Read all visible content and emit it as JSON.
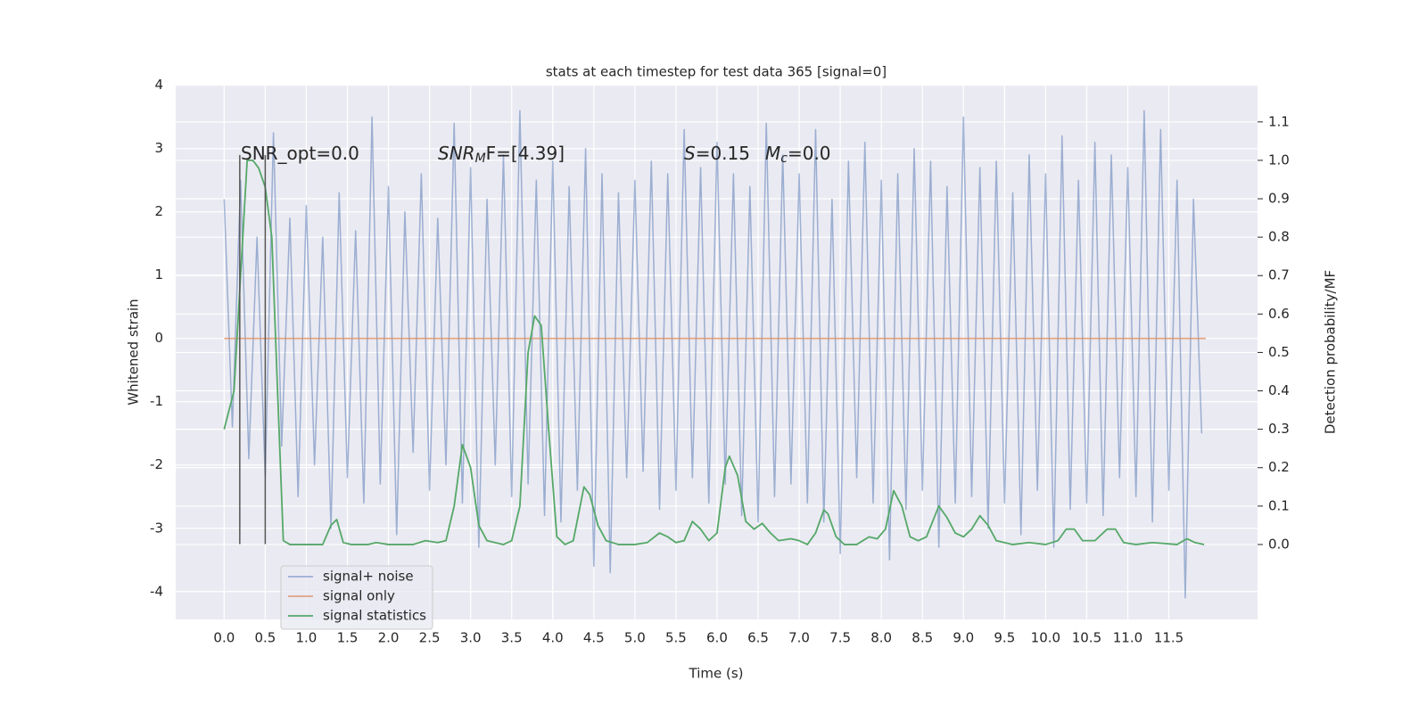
{
  "chart_data": {
    "type": "line",
    "title": "stats at each timestep for test data 365 [signal=0]",
    "xlabel": "Time (s)",
    "ylabel": "Whitened strain",
    "y2label": "Detection probability/MF",
    "xlim": [
      -0.59,
      12.58
    ],
    "ylim": [
      -4.44,
      4.01
    ],
    "y2lim": [
      -0.195,
      1.197
    ],
    "xticks": [
      {
        "value": 0,
        "label": "0.0"
      },
      0.5,
      {
        "value": 1,
        "label": "1.0"
      },
      1.5,
      {
        "value": 2,
        "label": "2.0"
      },
      2.5,
      {
        "value": 3,
        "label": "3.0"
      },
      3.5,
      {
        "value": 4,
        "label": "4.0"
      },
      4.5,
      {
        "value": 5,
        "label": "5.0"
      },
      5.5,
      {
        "value": 6,
        "label": "6.0"
      },
      6.5,
      {
        "value": 7,
        "label": "7.0"
      },
      7.5,
      {
        "value": 8,
        "label": "8.0"
      },
      8.5,
      {
        "value": 9,
        "label": "9.0"
      },
      9.5,
      {
        "value": 10,
        "label": "10.0"
      },
      10.5,
      {
        "value": 11,
        "label": "11.0"
      },
      11.5
    ],
    "yticks": [
      -4,
      -3,
      -2,
      -1,
      0,
      1,
      2,
      3,
      4
    ],
    "y2ticks": [
      {
        "value": 0,
        "label": "0.0"
      },
      0.1,
      0.2,
      0.3,
      0.4,
      0.5,
      0.6,
      0.7,
      0.8,
      0.9,
      {
        "value": 1,
        "label": "1.0"
      },
      1.1
    ],
    "grid": true,
    "legend": "lower left",
    "series": [
      {
        "name": "signal+ noise",
        "color": "#4c72b0",
        "x": [
          0,
          0.1,
          0.2,
          0.3,
          0.4,
          0.5,
          0.6,
          0.7,
          0.8,
          0.9,
          1,
          1.1,
          1.2,
          1.3,
          1.4,
          1.5,
          1.6,
          1.7,
          1.8,
          1.9,
          2,
          2.1,
          2.2,
          2.3,
          2.4,
          2.5,
          2.6,
          2.7,
          2.8,
          2.9,
          3,
          3.1,
          3.2,
          3.3,
          3.4,
          3.5,
          3.6,
          3.7,
          3.8,
          3.9,
          4,
          4.1,
          4.2,
          4.3,
          4.4,
          4.5,
          4.6,
          4.7,
          4.8,
          4.9,
          5,
          5.1,
          5.2,
          5.3,
          5.4,
          5.5,
          5.6,
          5.7,
          5.8,
          5.9,
          6,
          6.1,
          6.2,
          6.3,
          6.4,
          6.5,
          6.6,
          6.7,
          6.8,
          6.9,
          7,
          7.1,
          7.2,
          7.3,
          7.4,
          7.5,
          7.6,
          7.7,
          7.8,
          7.9,
          8,
          8.1,
          8.2,
          8.3,
          8.4,
          8.5,
          8.6,
          8.7,
          8.8,
          8.9,
          9,
          9.1,
          9.2,
          9.3,
          9.4,
          9.5,
          9.6,
          9.7,
          9.8,
          9.9,
          10,
          10.1,
          10.2,
          10.3,
          10.4,
          10.5,
          10.6,
          10.7,
          10.8,
          10.9,
          11,
          11.1,
          11.2,
          11.3,
          11.4,
          11.5,
          11.6,
          11.7,
          11.8,
          11.9
        ],
        "values": [
          2.2,
          -1.4,
          2.5,
          -1.9,
          1.6,
          -2.2,
          3.25,
          -1.7,
          1.9,
          -2.5,
          2.1,
          -2.0,
          1.6,
          -3.0,
          2.3,
          -2.2,
          1.7,
          -2.6,
          3.5,
          -2.3,
          2.4,
          -3.1,
          2.0,
          -1.8,
          2.6,
          -2.4,
          1.9,
          -2.0,
          3.4,
          -2.6,
          2.7,
          -3.3,
          2.2,
          -2.0,
          2.9,
          -2.5,
          3.6,
          -2.3,
          2.5,
          -2.8,
          2.8,
          -2.9,
          2.4,
          -2.4,
          3.0,
          -3.6,
          2.6,
          -3.7,
          2.3,
          -2.2,
          2.5,
          -2.1,
          2.8,
          -2.7,
          2.6,
          -2.4,
          3.3,
          -2.2,
          2.7,
          -2.6,
          3.1,
          -2.3,
          2.6,
          -2.8,
          2.4,
          -2.9,
          3.4,
          -2.5,
          2.9,
          -2.3,
          2.6,
          -2.6,
          3.3,
          -2.9,
          2.2,
          -3.4,
          2.8,
          -2.2,
          3.1,
          -2.6,
          2.5,
          -3.5,
          2.6,
          -2.7,
          3.0,
          -2.4,
          2.8,
          -3.3,
          2.4,
          -2.6,
          3.5,
          -2.5,
          2.7,
          -3.0,
          2.8,
          -2.6,
          2.3,
          -3.1,
          2.9,
          -2.4,
          2.6,
          -3.3,
          3.2,
          -2.7,
          2.5,
          -2.6,
          3.1,
          -2.8,
          2.9,
          -2.2,
          2.7,
          -2.5,
          3.6,
          -2.9,
          3.3,
          -2.4,
          2.5,
          -4.1,
          2.2,
          -1.5
        ]
      },
      {
        "name": "signal only",
        "color": "#dd8452",
        "x": [
          0,
          11.95
        ],
        "values": [
          0,
          0
        ]
      },
      {
        "name": "signal statistics",
        "color": "#55a868",
        "axis": "y2",
        "x": [
          0,
          0.12,
          0.2,
          0.28,
          0.35,
          0.42,
          0.5,
          0.58,
          0.65,
          0.72,
          0.8,
          1.0,
          1.2,
          1.3,
          1.37,
          1.45,
          1.55,
          1.75,
          1.85,
          2.0,
          2.3,
          2.45,
          2.6,
          2.7,
          2.8,
          2.9,
          3.0,
          3.1,
          3.2,
          3.4,
          3.5,
          3.6,
          3.7,
          3.78,
          3.86,
          3.95,
          4.05,
          4.15,
          4.25,
          4.38,
          4.45,
          4.55,
          4.65,
          4.8,
          5.0,
          5.15,
          5.3,
          5.4,
          5.5,
          5.6,
          5.7,
          5.8,
          5.9,
          6.0,
          6.1,
          6.15,
          6.25,
          6.35,
          6.45,
          6.55,
          6.65,
          6.75,
          6.9,
          7.0,
          7.1,
          7.2,
          7.3,
          7.35,
          7.45,
          7.55,
          7.7,
          7.85,
          7.95,
          8.05,
          8.15,
          8.25,
          8.35,
          8.45,
          8.55,
          8.7,
          8.8,
          8.9,
          9.0,
          9.1,
          9.2,
          9.3,
          9.4,
          9.6,
          9.8,
          10.0,
          10.15,
          10.25,
          10.35,
          10.45,
          10.6,
          10.75,
          10.85,
          10.95,
          11.1,
          11.3,
          11.6,
          11.72,
          11.82,
          11.93
        ],
        "values": [
          0.3,
          0.4,
          0.7,
          1.0,
          1.0,
          0.98,
          0.93,
          0.8,
          0.4,
          0.01,
          0.0,
          0.0,
          0.0,
          0.05,
          0.065,
          0.005,
          0.0,
          0.0,
          0.005,
          0.0,
          0.0,
          0.01,
          0.005,
          0.01,
          0.1,
          0.26,
          0.2,
          0.05,
          0.01,
          0.0,
          0.01,
          0.1,
          0.5,
          0.595,
          0.57,
          0.3,
          0.02,
          0.0,
          0.01,
          0.15,
          0.13,
          0.05,
          0.01,
          0.0,
          0.0,
          0.005,
          0.03,
          0.02,
          0.005,
          0.01,
          0.06,
          0.04,
          0.01,
          0.03,
          0.2,
          0.23,
          0.18,
          0.06,
          0.04,
          0.055,
          0.03,
          0.01,
          0.015,
          0.01,
          0.0,
          0.03,
          0.09,
          0.08,
          0.02,
          0.0,
          0.0,
          0.02,
          0.015,
          0.04,
          0.14,
          0.1,
          0.02,
          0.01,
          0.02,
          0.1,
          0.07,
          0.03,
          0.02,
          0.04,
          0.075,
          0.05,
          0.01,
          0.0,
          0.005,
          0.0,
          0.01,
          0.04,
          0.04,
          0.01,
          0.01,
          0.04,
          0.04,
          0.005,
          0.0,
          0.005,
          0.0,
          0.015,
          0.005,
          0.0
        ]
      }
    ],
    "vlines": [
      {
        "x": 0.19,
        "ymin": -3.25,
        "ymax": 2.9,
        "color": "#555555"
      },
      {
        "x": 0.5,
        "ymin": -3.25,
        "ymax": 2.9,
        "color": "#555555"
      }
    ],
    "annotations": [
      [
        {
          "text": "SNR_opt=0.0"
        }
      ],
      [
        {
          "text": "SNR",
          "italic": true
        },
        {
          "text": "M",
          "italic": true,
          "sub": true
        },
        {
          "text": "F=[4.39]",
          "italic": false
        }
      ],
      [
        {
          "text": "S",
          "italic": true
        },
        {
          "text": "=0.15"
        }
      ],
      [
        {
          "text": "M",
          "italic": true
        },
        {
          "text": "c",
          "italic": true,
          "sub": true
        },
        {
          "text": "=0.0"
        }
      ]
    ]
  }
}
